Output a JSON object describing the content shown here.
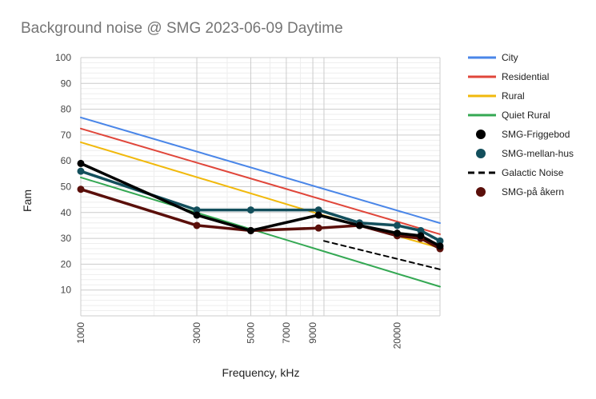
{
  "chart_data": {
    "type": "line",
    "title": "Background noise @ SMG 2023-06-09 Daytime",
    "xlabel": "Frequency, kHz",
    "ylabel": "Fam",
    "x_scale": "log",
    "xlim": [
      1000,
      30000
    ],
    "ylim": [
      0,
      100
    ],
    "y_ticks": [
      10,
      20,
      30,
      40,
      50,
      60,
      70,
      80,
      90,
      100
    ],
    "x_ticks": [
      {
        "value": 1000,
        "label": "1000"
      },
      {
        "value": 3000,
        "label": "3000"
      },
      {
        "value": 5000,
        "label": "5000"
      },
      {
        "value": 7000,
        "label": "7000"
      },
      {
        "value": 9000,
        "label": "9000"
      },
      {
        "value": 20000,
        "label": "20000"
      }
    ],
    "grid": true,
    "legend_position": "right",
    "series": [
      {
        "name": "City",
        "color": "#4a86e8",
        "style": "line",
        "x": [
          1000,
          30000
        ],
        "y": [
          76.8,
          35.9
        ]
      },
      {
        "name": "Residential",
        "color": "#e0463a",
        "style": "line",
        "x": [
          1000,
          30000
        ],
        "y": [
          72.5,
          31.6
        ]
      },
      {
        "name": "Rural",
        "color": "#f1b90c",
        "style": "line",
        "x": [
          1000,
          9500,
          30000
        ],
        "y": [
          67.2,
          39.5,
          26.3
        ]
      },
      {
        "name": "Quiet Rural",
        "color": "#34a853",
        "style": "line",
        "x": [
          1000,
          30000
        ],
        "y": [
          53.6,
          11.3
        ]
      },
      {
        "name": "SMG-Friggebod",
        "color": "#000000",
        "style": "line-markers",
        "x": [
          1000,
          3000,
          5000,
          9500,
          14000,
          20000,
          25000,
          30000
        ],
        "y": [
          59,
          39,
          33,
          39,
          35,
          32,
          31,
          27
        ]
      },
      {
        "name": "SMG-mellan-hus",
        "color": "#134f5c",
        "style": "line-markers",
        "x": [
          1000,
          3000,
          5000,
          9500,
          14000,
          20000,
          25000,
          30000
        ],
        "y": [
          56,
          41,
          41,
          41,
          36,
          35,
          33,
          29
        ]
      },
      {
        "name": "Galactic Noise",
        "color": "#000000",
        "style": "dashed",
        "x": [
          10000,
          30000
        ],
        "y": [
          29,
          18
        ]
      },
      {
        "name": "SMG-på åkern",
        "color": "#5a0f0a",
        "style": "line-markers",
        "x": [
          1000,
          3000,
          5000,
          9500,
          14000,
          20000,
          25000,
          30000
        ],
        "y": [
          49,
          35,
          33,
          34,
          35,
          31,
          30,
          26
        ]
      }
    ]
  }
}
